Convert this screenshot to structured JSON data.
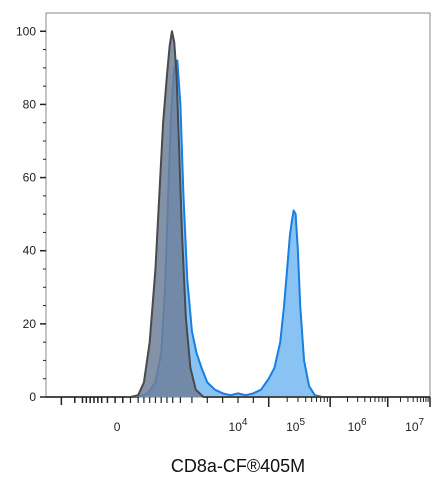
{
  "chart_data": {
    "type": "area",
    "xlabel": "CD8a-CF®405M",
    "ylabel": "",
    "title": "",
    "ylim": [
      0,
      105
    ],
    "grid": false,
    "legend": "none",
    "y_ticks": [
      {
        "value": 0,
        "label": "0"
      },
      {
        "value": 20,
        "label": "20"
      },
      {
        "value": 40,
        "label": "40"
      },
      {
        "value": 60,
        "label": "60"
      },
      {
        "value": 80,
        "label": "80"
      },
      {
        "value": 100,
        "label": "100"
      }
    ],
    "x_axis_scale": "biexponential",
    "x_ticks": [
      {
        "value": "0",
        "base": "0",
        "exp": ""
      },
      {
        "value": "1e4",
        "base": "10",
        "exp": "4"
      },
      {
        "value": "1e5",
        "base": "10",
        "exp": "5"
      },
      {
        "value": "1e6",
        "base": "10",
        "exp": "6"
      },
      {
        "value": "1e7",
        "base": "10",
        "exp": "7"
      }
    ],
    "series": [
      {
        "color_line": "#4a4a4a",
        "color_fill": "#6f7f99",
        "points": [
          [
            0.0,
            0
          ],
          [
            0.22,
            0
          ],
          [
            0.24,
            0.5
          ],
          [
            0.255,
            4
          ],
          [
            0.27,
            15
          ],
          [
            0.285,
            35
          ],
          [
            0.295,
            55
          ],
          [
            0.305,
            75
          ],
          [
            0.315,
            88
          ],
          [
            0.322,
            96
          ],
          [
            0.328,
            100
          ],
          [
            0.334,
            97
          ],
          [
            0.34,
            88
          ],
          [
            0.346,
            70
          ],
          [
            0.354,
            45
          ],
          [
            0.364,
            22
          ],
          [
            0.376,
            8
          ],
          [
            0.39,
            2
          ],
          [
            0.41,
            0
          ],
          [
            1.0,
            0
          ]
        ]
      },
      {
        "color_line": "#1a7ee0",
        "color_fill": "#7cbcf3",
        "points": [
          [
            0.0,
            0
          ],
          [
            0.24,
            0
          ],
          [
            0.265,
            1
          ],
          [
            0.285,
            4
          ],
          [
            0.3,
            12
          ],
          [
            0.31,
            30
          ],
          [
            0.318,
            55
          ],
          [
            0.326,
            78
          ],
          [
            0.334,
            90
          ],
          [
            0.342,
            92
          ],
          [
            0.35,
            80
          ],
          [
            0.358,
            55
          ],
          [
            0.368,
            32
          ],
          [
            0.38,
            18
          ],
          [
            0.392,
            12
          ],
          [
            0.405,
            8
          ],
          [
            0.42,
            4
          ],
          [
            0.44,
            2
          ],
          [
            0.46,
            1
          ],
          [
            0.48,
            0.5
          ],
          [
            0.5,
            1
          ],
          [
            0.52,
            0.5
          ],
          [
            0.54,
            1
          ],
          [
            0.56,
            2
          ],
          [
            0.58,
            5
          ],
          [
            0.595,
            8
          ],
          [
            0.61,
            15
          ],
          [
            0.62,
            25
          ],
          [
            0.628,
            35
          ],
          [
            0.635,
            44
          ],
          [
            0.64,
            48
          ],
          [
            0.645,
            51
          ],
          [
            0.65,
            50
          ],
          [
            0.656,
            40
          ],
          [
            0.662,
            25
          ],
          [
            0.672,
            10
          ],
          [
            0.685,
            3
          ],
          [
            0.7,
            0.5
          ],
          [
            0.72,
            0
          ],
          [
            1.0,
            0
          ]
        ]
      }
    ]
  }
}
